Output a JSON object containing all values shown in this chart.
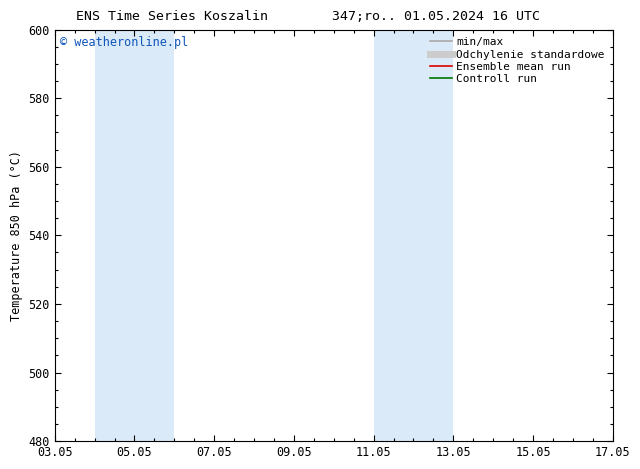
{
  "title_left": "ENS Time Series Koszalin",
  "title_right": "347;ro.. 01.05.2024 16 UTC",
  "ylabel": "Temperature 850 hPa (°C)",
  "ylim": [
    480,
    600
  ],
  "yticks": [
    480,
    500,
    520,
    540,
    560,
    580,
    600
  ],
  "xlim": [
    0,
    14
  ],
  "xtick_labels": [
    "03.05",
    "05.05",
    "07.05",
    "09.05",
    "11.05",
    "13.05",
    "15.05",
    "17.05"
  ],
  "xtick_positions": [
    0,
    2,
    4,
    6,
    8,
    10,
    12,
    14
  ],
  "bg_color": "#ffffff",
  "plot_bg_color": "#ffffff",
  "shaded_bands": [
    {
      "x_start": 1.0,
      "x_end": 3.0,
      "color": "#daeaf8"
    },
    {
      "x_start": 8.0,
      "x_end": 10.0,
      "color": "#daeaf8"
    }
  ],
  "watermark": "© weatheronline.pl",
  "watermark_color": "#1155bb",
  "legend_entries": [
    {
      "label": "min/max",
      "color": "#aaaaaa",
      "lw": 1.2
    },
    {
      "label": "Odchylenie standardowe",
      "color": "#cccccc",
      "lw": 5
    },
    {
      "label": "Ensemble mean run",
      "color": "#dd0000",
      "lw": 1.2
    },
    {
      "label": "Controll run",
      "color": "#007700",
      "lw": 1.2
    }
  ],
  "grid_color": "#cccccc",
  "tick_color": "#000000",
  "font_size": 8.5,
  "title_font_size": 9.5
}
